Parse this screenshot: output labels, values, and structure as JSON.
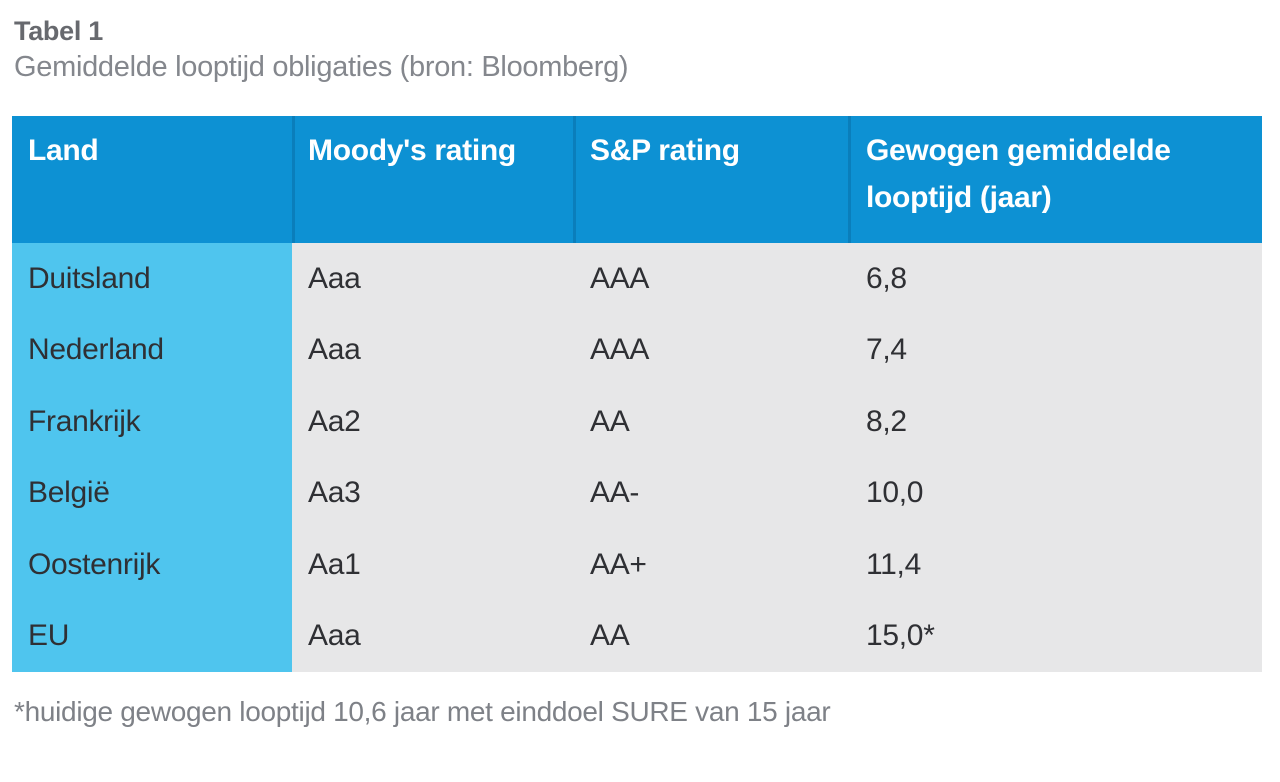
{
  "doc": {
    "title": "Tabel 1",
    "subtitle": "Gemiddelde looptijd obligaties (bron: Bloomberg)",
    "footnote": "*huidige gewogen looptijd 10,6 jaar met einddoel SURE van 15 jaar"
  },
  "colors": {
    "header_bg": "#0d91d3",
    "header_divider": "#0a7ebb",
    "header_text": "#ffffff",
    "first_col_bg": "#4fc5ee",
    "body_bg": "#e7e7e8",
    "body_text": "#2f3034",
    "title_text": "#67696e",
    "subtitle_text": "#84878d",
    "footnote_text": "#7e8187"
  },
  "table": {
    "headers": [
      {
        "label": "Land"
      },
      {
        "label": "Moody's rating"
      },
      {
        "label": "S&P rating"
      },
      {
        "label": "Gewogen gemiddelde looptijd (jaar)"
      }
    ],
    "rows": [
      {
        "land": "Duitsland",
        "moodys": "Aaa",
        "sp": "AAA",
        "looptijd": "6,8"
      },
      {
        "land": "Nederland",
        "moodys": "Aaa",
        "sp": "AAA",
        "looptijd": "7,4"
      },
      {
        "land": "Frankrijk",
        "moodys": "Aa2",
        "sp": "AA",
        "looptijd": "8,2"
      },
      {
        "land": "België",
        "moodys": "Aa3",
        "sp": "AA-",
        "looptijd": "10,0"
      },
      {
        "land": "Oostenrijk",
        "moodys": "Aa1",
        "sp": "AA+",
        "looptijd": "11,4"
      },
      {
        "land": "EU",
        "moodys": "Aaa",
        "sp": "AA",
        "looptijd": "15,0*"
      }
    ]
  },
  "chart_data": {
    "type": "table",
    "title": "Gemiddelde looptijd obligaties (bron: Bloomberg)",
    "columns": [
      "Land",
      "Moody's rating",
      "S&P rating",
      "Gewogen gemiddelde looptijd (jaar)"
    ],
    "rows": [
      [
        "Duitsland",
        "Aaa",
        "AAA",
        "6,8"
      ],
      [
        "Nederland",
        "Aaa",
        "AAA",
        "7,4"
      ],
      [
        "Frankrijk",
        "Aa2",
        "AA",
        "8,2"
      ],
      [
        "België",
        "Aa3",
        "AA-",
        "10,0"
      ],
      [
        "Oostenrijk",
        "Aa1",
        "AA+",
        "11,4"
      ],
      [
        "EU",
        "Aaa",
        "AA",
        "15,0*"
      ]
    ],
    "footnote": "*huidige gewogen looptijd 10,6 jaar met einddoel SURE van 15 jaar"
  }
}
